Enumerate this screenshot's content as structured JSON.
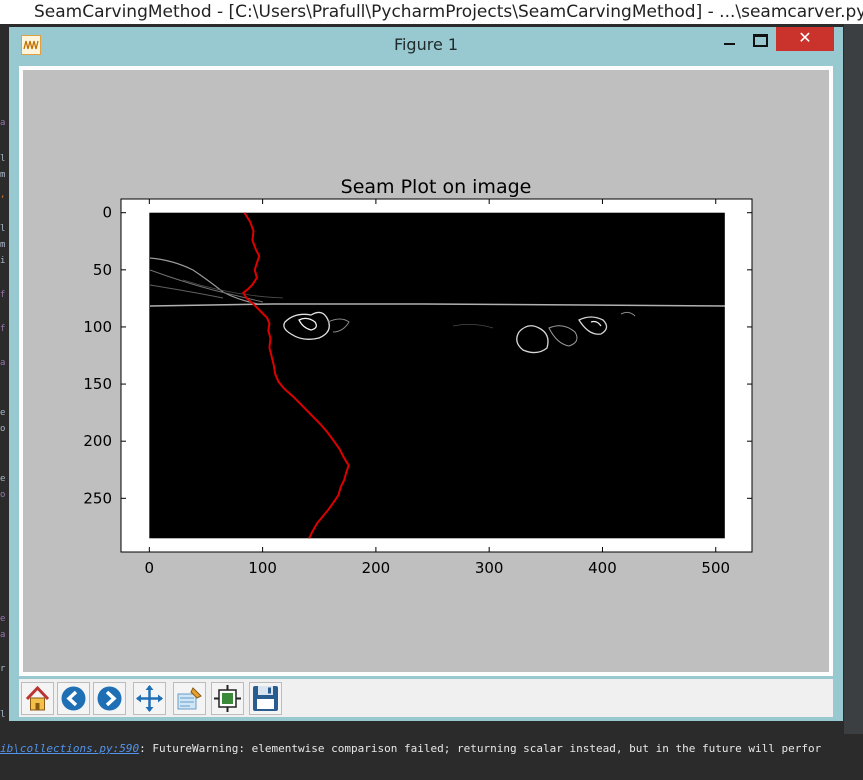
{
  "ide": {
    "title": "SeamCarvingMethod - [C:\\Users\\Prafull\\PycharmProjects\\SeamCarvingMethod] - ...\\seamcarver.py",
    "console_link": "ib\\collections.py:590",
    "console_message": ": FutureWarning: elementwise comparison failed; returning scalar instead, but in the future will perfor"
  },
  "window": {
    "title": "Figure 1",
    "close_glyph": "✕"
  },
  "toolbar": {
    "buttons": [
      {
        "name": "home-button",
        "icon": "home-icon"
      },
      {
        "name": "back-button",
        "icon": "back-arrow-icon"
      },
      {
        "name": "forward-button",
        "icon": "forward-arrow-icon"
      },
      {
        "name": "pan-button",
        "icon": "move-icon"
      },
      {
        "name": "zoom-button",
        "icon": "zoom-rect-icon"
      },
      {
        "name": "subplots-button",
        "icon": "subplots-icon"
      },
      {
        "name": "save-button",
        "icon": "save-icon"
      }
    ]
  },
  "chart_data": {
    "type": "line",
    "title": "Seam Plot on image",
    "xlabel": "",
    "ylabel": "",
    "xlim": [
      -25,
      532
    ],
    "ylim": [
      297,
      -12
    ],
    "y_inverted": true,
    "xticks": [
      0,
      100,
      200,
      300,
      400,
      500
    ],
    "yticks": [
      0,
      50,
      100,
      150,
      200,
      250
    ],
    "background_image": "edge-magnitude image (black background, white edges)",
    "image_extent": {
      "x": [
        0,
        508
      ],
      "y": [
        0,
        285
      ]
    },
    "series": [
      {
        "name": "seam",
        "color": "#dd0000",
        "points": [
          [
            84,
            0
          ],
          [
            89,
            8
          ],
          [
            92,
            16
          ],
          [
            91,
            24
          ],
          [
            94,
            32
          ],
          [
            97,
            38
          ],
          [
            95,
            44
          ],
          [
            93,
            50
          ],
          [
            95,
            57
          ],
          [
            91,
            63
          ],
          [
            87,
            67
          ],
          [
            83,
            70
          ],
          [
            86,
            75
          ],
          [
            92,
            80
          ],
          [
            98,
            86
          ],
          [
            104,
            92
          ],
          [
            106,
            97
          ],
          [
            105,
            103
          ],
          [
            107,
            110
          ],
          [
            106,
            118
          ],
          [
            108,
            126
          ],
          [
            110,
            134
          ],
          [
            111,
            141
          ],
          [
            114,
            148
          ],
          [
            119,
            154
          ],
          [
            127,
            161
          ],
          [
            135,
            169
          ],
          [
            142,
            176
          ],
          [
            150,
            184
          ],
          [
            157,
            192
          ],
          [
            163,
            200
          ],
          [
            168,
            207
          ],
          [
            171,
            213
          ],
          [
            174,
            218
          ],
          [
            176,
            221
          ],
          [
            174,
            227
          ],
          [
            172,
            234
          ],
          [
            169,
            240
          ],
          [
            167,
            247
          ],
          [
            163,
            253
          ],
          [
            158,
            260
          ],
          [
            153,
            266
          ],
          [
            148,
            272
          ],
          [
            144,
            279
          ],
          [
            141,
            285
          ]
        ]
      }
    ]
  }
}
